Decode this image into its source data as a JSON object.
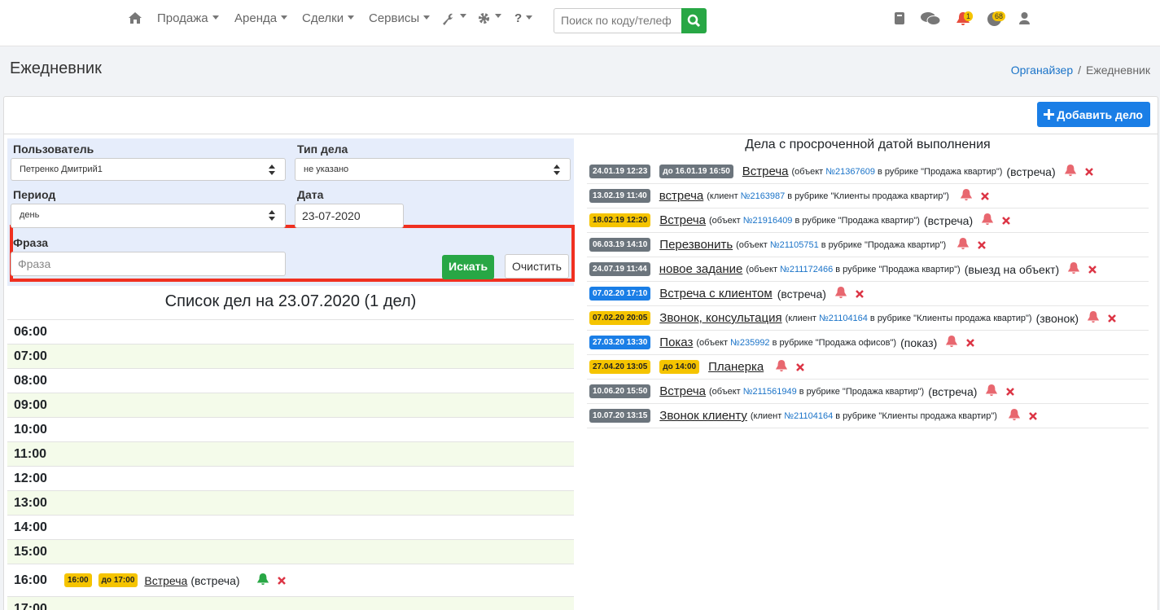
{
  "nav": {
    "menu": [
      "Продажа",
      "Аренда",
      "Сделки",
      "Сервисы"
    ],
    "help": "?",
    "search_placeholder": "Поиск по коду/телеф",
    "notification_count": "1",
    "task_count": "68"
  },
  "header": {
    "title": "Ежедневник",
    "breadcrumb": {
      "items": [
        "Органайзер",
        "Ежедневник"
      ],
      "separator": "/"
    }
  },
  "add_button": "Добавить дело",
  "filter": {
    "user": {
      "label": "Пользователь",
      "value": "Петренко Дмитрий1"
    },
    "task_type": {
      "label": "Тип дела",
      "value": "не указано"
    },
    "period": {
      "label": "Период",
      "value": "день"
    },
    "date": {
      "label": "Дата",
      "value": "23-07-2020"
    },
    "phrase": {
      "label": "Фраза",
      "placeholder": "Фраза"
    },
    "search_button": "Искать",
    "clear_button": "Очистить"
  },
  "schedule": {
    "title": "Список дел на 23.07.2020 (1 дел)",
    "rows": [
      {
        "time": "06:00"
      },
      {
        "time": "07:00"
      },
      {
        "time": "08:00"
      },
      {
        "time": "09:00"
      },
      {
        "time": "10:00"
      },
      {
        "time": "11:00"
      },
      {
        "time": "12:00"
      },
      {
        "time": "13:00"
      },
      {
        "time": "14:00"
      },
      {
        "time": "15:00"
      },
      {
        "time": "16:00",
        "events": [
          {
            "start": "16:00",
            "end": "до 17:00",
            "title": "Встреча",
            "type": "(встреча)"
          }
        ]
      },
      {
        "time": "17:00"
      }
    ]
  },
  "overdue": {
    "title": "Дела с просроченной датой выполнения",
    "items": [
      {
        "date": "24.01.19 12:23",
        "color": "grey",
        "deadline": "до 16.01.19 16:50",
        "deadline_color": "grey",
        "title": "Встреча",
        "before": "(объект",
        "link": "№21367609",
        "after": "в рубрике \"Продажа квартир\")",
        "type": "(встреча)"
      },
      {
        "date": "13.02.19 11:40",
        "color": "grey",
        "title": "встреча",
        "before": "(клиент",
        "link": "№2163987",
        "after": "в рубрике \"Клиенты продажа квартир\")"
      },
      {
        "date": "18.02.19 12:20",
        "color": "yellow",
        "title": "Встреча",
        "before": "(объект",
        "link": "№21916409",
        "after": "в рубрике \"Продажа квартир\")",
        "type": "(встреча)"
      },
      {
        "date": "06.03.19 14:10",
        "color": "grey",
        "title": "Перезвонить",
        "before": "(объект",
        "link": "№21105751",
        "after": "в рубрике \"Продажа квартир\")"
      },
      {
        "date": "24.07.19 11:44",
        "color": "grey",
        "title": "новое задание",
        "before": "(объект",
        "link": "№211172466",
        "after": "в рубрике \"Продажа квартир\")",
        "type": "(выезд на объект)"
      },
      {
        "date": "07.02.20 17:10",
        "color": "blue",
        "title": "Встреча с клиентом",
        "type": "(встреча)"
      },
      {
        "date": "07.02.20 20:05",
        "color": "yellow",
        "title": "Звонок, консультация",
        "before": "(клиент",
        "link": "№21104164",
        "after": "в рубрике \"Клиенты продажа квартир\")",
        "type": "(звонок)"
      },
      {
        "date": "27.03.20 13:30",
        "color": "blue",
        "title": "Показ",
        "before": "(объект",
        "link": "№235992",
        "after": "в рубрике \"Продажа офисов\")",
        "type": "(показ)"
      },
      {
        "date": "27.04.20 13:05",
        "color": "yellow",
        "deadline": "до 14:00",
        "deadline_color": "yellow",
        "title": "Планерка"
      },
      {
        "date": "10.06.20 15:50",
        "color": "grey",
        "title": "Встреча",
        "before": "(объект",
        "link": "№211561949",
        "after": "в рубрике \"Продажа квартир\")",
        "type": "(встреча)"
      },
      {
        "date": "10.07.20 13:15",
        "color": "grey",
        "title": "Звонок клиенту",
        "before": "(клиент",
        "link": "№21104164",
        "after": "в рубрике \"Клиенты продажа квартир\")"
      }
    ]
  }
}
